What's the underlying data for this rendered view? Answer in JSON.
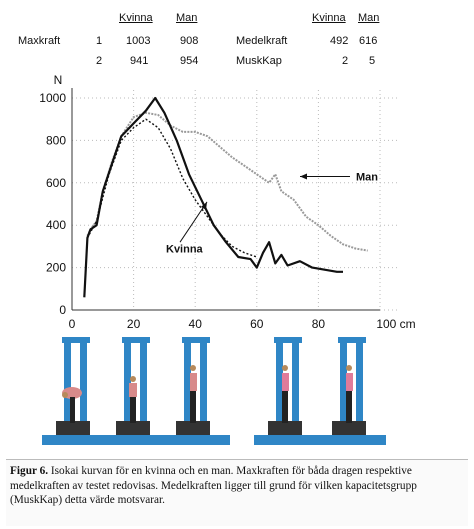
{
  "table": {
    "headers": {
      "kvinna": "Kvinna",
      "man": "Man",
      "kvinna2": "Kvinna",
      "man2": "Man"
    },
    "rows": [
      {
        "label": "Maxkraft",
        "num": "1",
        "kvinna": "1003",
        "man": "908",
        "label2": "Medelkraft",
        "kvinna2": "492",
        "man2": "616"
      },
      {
        "label": "",
        "num": "2",
        "kvinna": "941",
        "man": "954",
        "label2": "MuskKap",
        "kvinna2": "2",
        "man2": "5"
      }
    ]
  },
  "chart_data": {
    "type": "line",
    "ylabel": "N",
    "xunit": "100 cm",
    "xticks": [
      "0",
      "20",
      "40",
      "60",
      "80",
      "100 cm"
    ],
    "yticks": [
      "0",
      "200",
      "400",
      "600",
      "800",
      "1000"
    ],
    "xlim": [
      0,
      100
    ],
    "ylim": [
      0,
      1000
    ],
    "grid": "dotted",
    "annotations": [
      "Man",
      "Kvinna"
    ],
    "series": [
      {
        "name": "Man",
        "color": "#9a9a9a",
        "x": [
          5,
          6,
          8,
          10,
          13,
          16,
          20,
          24,
          28,
          32,
          36,
          40,
          44,
          48,
          52,
          56,
          60,
          64,
          66,
          68,
          72,
          76,
          80,
          84,
          88,
          92,
          96
        ],
        "y": [
          350,
          380,
          420,
          560,
          700,
          820,
          910,
          930,
          920,
          870,
          840,
          840,
          820,
          770,
          720,
          680,
          640,
          600,
          640,
          560,
          520,
          440,
          400,
          350,
          310,
          290,
          280
        ]
      },
      {
        "name": "Kvinna",
        "color": "#111111",
        "x": [
          4,
          5,
          6,
          8,
          10,
          13,
          16,
          20,
          24,
          27,
          30,
          34,
          38,
          42,
          46,
          50,
          54,
          58,
          60,
          62,
          64,
          66,
          68,
          70,
          74,
          78,
          82,
          86,
          88
        ],
        "y": [
          60,
          340,
          380,
          400,
          560,
          690,
          820,
          880,
          940,
          1000,
          930,
          800,
          640,
          520,
          400,
          320,
          250,
          240,
          200,
          270,
          320,
          220,
          260,
          210,
          230,
          200,
          190,
          180,
          180
        ]
      },
      {
        "name": "Kvinna 2",
        "color": "#111111",
        "x": [
          5,
          8,
          12,
          16,
          20,
          24,
          28,
          32,
          36,
          40,
          44,
          48,
          52,
          56,
          60
        ],
        "y": [
          340,
          420,
          640,
          800,
          860,
          900,
          860,
          760,
          620,
          520,
          440,
          360,
          300,
          270,
          250
        ]
      }
    ]
  },
  "caption": {
    "figure": "Figur 6.",
    "text": " Isokai kurvan för en kvinna och en man. Maxkraften för båda dragen respektive medelkraften av testet redovisas. Medelkraften ligger till grund för vilken kapacitetsgrupp (MuskKap) detta värde motsvarar."
  }
}
